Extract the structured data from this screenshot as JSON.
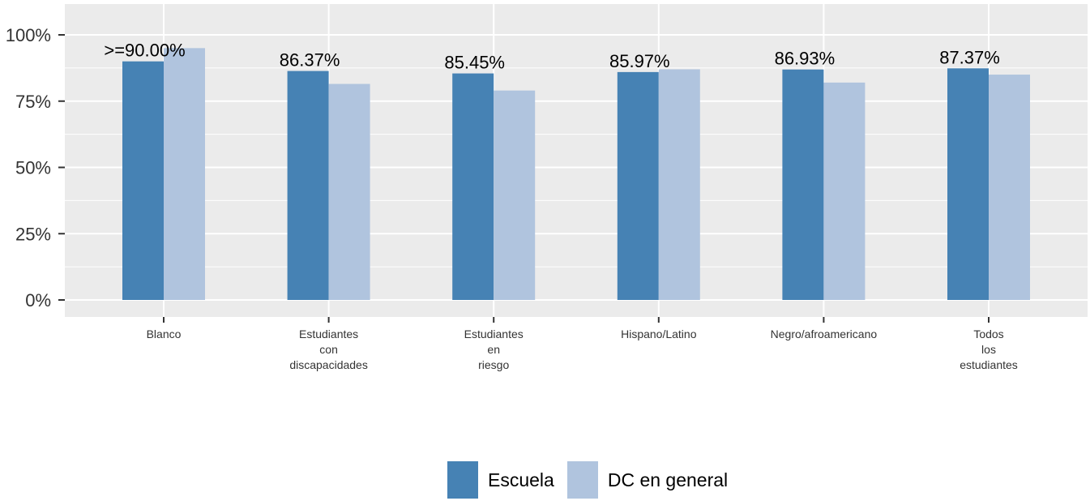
{
  "chart_data": {
    "type": "bar",
    "categories": [
      [
        "Blanco"
      ],
      [
        "Estudiantes",
        "con",
        "discapacidades"
      ],
      [
        "Estudiantes",
        "en",
        "riesgo"
      ],
      [
        "Hispano/Latino"
      ],
      [
        "Negro/afroamericano"
      ],
      [
        "Todos",
        "los",
        "estudiantes"
      ]
    ],
    "series": [
      {
        "name": "Escuela",
        "color": "#4682B4",
        "values": [
          90.0,
          86.37,
          85.45,
          85.97,
          86.93,
          87.37
        ]
      },
      {
        "name": "DC en general",
        "color": "#B0C4DE",
        "values": [
          95,
          81.5,
          79,
          87,
          82,
          85
        ]
      }
    ],
    "data_labels": [
      ">=90.00%",
      "86.37%",
      "85.45%",
      "85.97%",
      "86.93%",
      "87.37%"
    ],
    "yticks": [
      "0%",
      "25%",
      "50%",
      "75%",
      "100%"
    ],
    "ylim": [
      0,
      100
    ],
    "grid": true,
    "legend_position": "bottom",
    "panel_color": "#EBEBEB"
  }
}
